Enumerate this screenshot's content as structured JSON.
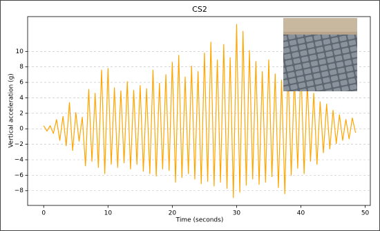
{
  "chart_data": {
    "type": "line",
    "title": "CS2",
    "x_label": "Time (seconds)",
    "y_label": "Vertical acceleration (g)",
    "color": "#ffa500",
    "x": [
      0,
      0.5,
      1,
      1.5,
      2,
      2.5,
      3,
      3.5,
      4,
      4.5,
      5,
      5.5,
      6,
      6.5,
      7,
      7.5,
      8,
      8.5,
      9,
      9.5,
      10,
      10.5,
      11,
      11.5,
      12,
      12.5,
      13,
      13.5,
      14,
      14.5,
      15,
      15.5,
      16,
      16.5,
      17,
      17.5,
      18,
      18.5,
      19,
      19.5,
      20,
      20.5,
      21,
      21.5,
      22,
      22.5,
      23,
      23.5,
      24,
      24.5,
      25,
      25.5,
      26,
      26.5,
      27,
      27.5,
      28,
      28.5,
      29,
      29.5,
      30,
      30.5,
      31,
      31.5,
      32,
      32.5,
      33,
      33.5,
      34,
      34.5,
      35,
      35.5,
      36,
      36.5,
      37,
      37.5,
      38,
      38.5,
      39,
      39.5,
      40,
      40.5,
      41,
      41.5,
      42,
      42.5,
      43,
      43.5,
      44,
      44.5,
      45,
      45.5,
      46,
      46.5,
      47,
      47.5,
      48,
      48.5
    ],
    "values": [
      0.4,
      -0.3,
      0.4,
      -0.6,
      1.2,
      -1.5,
      1.6,
      -2.2,
      3.4,
      -2.8,
      2.1,
      -1.6,
      1.5,
      -4.8,
      5.1,
      -4.2,
      4.6,
      -5.0,
      7.6,
      -5.8,
      7.8,
      -4.6,
      5.3,
      -5.0,
      4.9,
      -4.4,
      6.1,
      -5.2,
      5.0,
      -4.6,
      5.6,
      -5.5,
      5.2,
      -5.8,
      7.6,
      -6.1,
      5.9,
      -5.2,
      7.0,
      -5.4,
      8.6,
      -6.9,
      9.5,
      -6.3,
      6.7,
      -5.8,
      8.1,
      -6.5,
      7.4,
      -7.1,
      9.8,
      -6.8,
      11.2,
      -7.4,
      8.9,
      -6.9,
      10.9,
      -7.7,
      9.2,
      -8.9,
      13.5,
      -8.2,
      12.6,
      -7.3,
      10.1,
      -6.5,
      8.7,
      -7.2,
      7.4,
      -6.9,
      8.9,
      -6.2,
      7.1,
      -7.6,
      6.3,
      -8.4,
      7.7,
      -6.0,
      6.8,
      -5.1,
      8.2,
      -5.8,
      5.9,
      -4.2,
      4.6,
      -4.6,
      3.5,
      -3.1,
      3.2,
      -2.6,
      2.4,
      -1.9,
      1.8,
      -1.5,
      1.2,
      -1.3,
      1.4,
      -0.5
    ],
    "xlim": [
      -2.5,
      50.8
    ],
    "ylim": [
      -9.9,
      14.5
    ],
    "xticks": [
      0,
      10,
      20,
      30,
      40,
      50
    ],
    "yticks": [
      {
        "value": -8,
        "label": "−8"
      },
      {
        "value": -6,
        "label": "−6"
      },
      {
        "value": -4,
        "label": "−4"
      },
      {
        "value": -2,
        "label": "−2"
      },
      0,
      2,
      4,
      6,
      8,
      10
    ],
    "grid": true
  }
}
